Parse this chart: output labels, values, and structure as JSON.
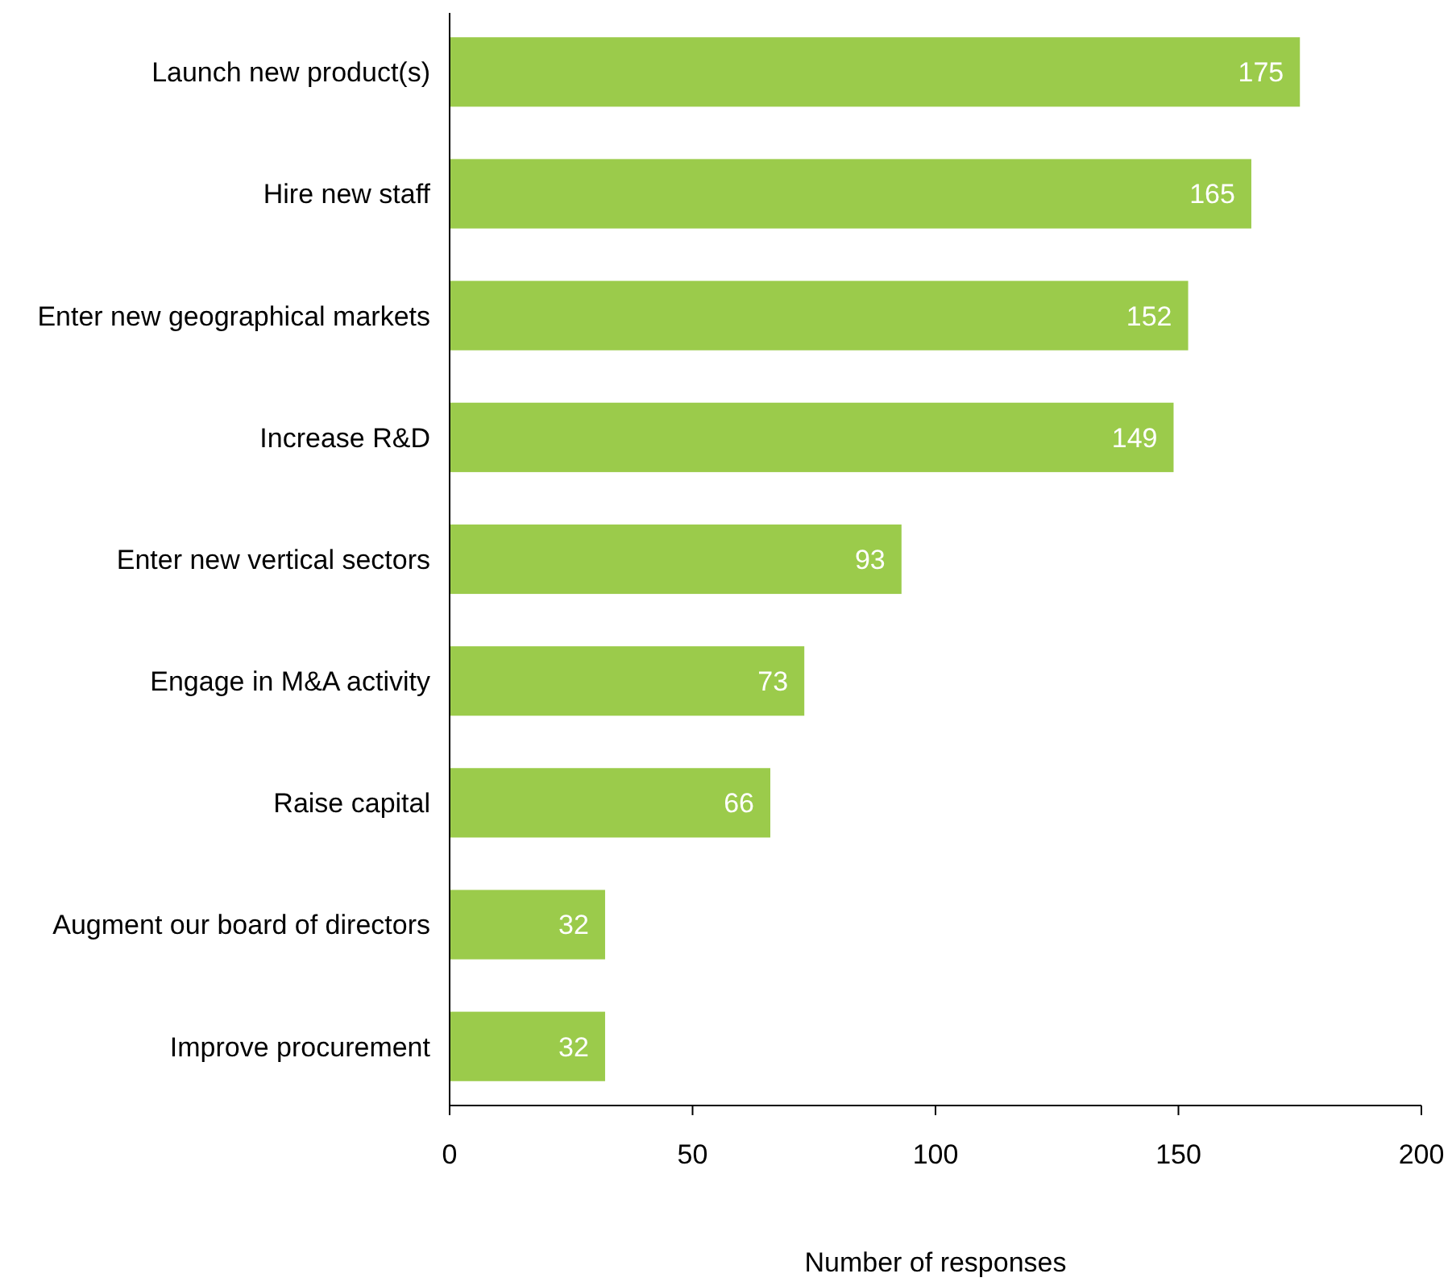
{
  "chart_data": {
    "type": "bar",
    "orientation": "horizontal",
    "xlabel": "Number of responses",
    "categories": [
      "Launch new product(s)",
      "Hire new staff",
      "Enter new geographical markets",
      "Increase R&D",
      "Enter new vertical sectors",
      "Engage in M&A activity",
      "Raise capital",
      "Augment our board of directors",
      "Improve procurement"
    ],
    "values": [
      175,
      165,
      152,
      149,
      93,
      73,
      66,
      32,
      32
    ],
    "color": "#9bcb4b",
    "data_labels": true,
    "grid": false,
    "xlim": [
      0,
      200
    ],
    "xticks": [
      0,
      50,
      100,
      150,
      200
    ]
  }
}
